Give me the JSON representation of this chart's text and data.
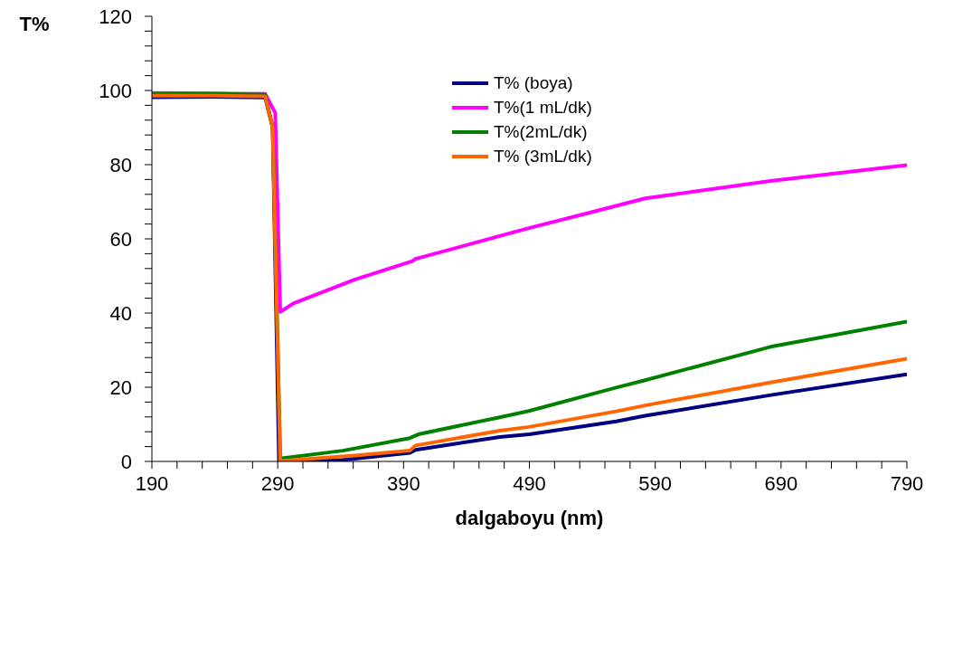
{
  "chart_data": {
    "type": "line",
    "xlabel": "dalgaboyu (nm)",
    "ylabel": "T%",
    "xlim": [
      190,
      790
    ],
    "ylim": [
      0,
      120
    ],
    "xticks": [
      190,
      {
        "value": 210,
        "label": null
      },
      {
        "value": 230,
        "label": null
      },
      {
        "value": 250,
        "label": null
      },
      {
        "value": 270,
        "label": null
      },
      290,
      {
        "value": 310,
        "label": null
      },
      {
        "value": 330,
        "label": null
      },
      {
        "value": 350,
        "label": null
      },
      {
        "value": 370,
        "label": null
      },
      390,
      {
        "value": 410,
        "label": null
      },
      {
        "value": 430,
        "label": null
      },
      {
        "value": 450,
        "label": null
      },
      {
        "value": 470,
        "label": null
      },
      490,
      {
        "value": 510,
        "label": null
      },
      {
        "value": 530,
        "label": null
      },
      {
        "value": 550,
        "label": null
      },
      {
        "value": 570,
        "label": null
      },
      590,
      {
        "value": 610,
        "label": null
      },
      {
        "value": 630,
        "label": null
      },
      {
        "value": 650,
        "label": null
      },
      {
        "value": 670,
        "label": null
      },
      690,
      {
        "value": 710,
        "label": null
      },
      {
        "value": 730,
        "label": null
      },
      {
        "value": 750,
        "label": null
      },
      {
        "value": 770,
        "label": null
      },
      790
    ],
    "yticks": [
      0,
      {
        "value": 4,
        "label": null
      },
      {
        "value": 8,
        "label": null
      },
      {
        "value": 12,
        "label": null
      },
      {
        "value": 16,
        "label": null
      },
      20,
      {
        "value": 24,
        "label": null
      },
      {
        "value": 28,
        "label": null
      },
      {
        "value": 32,
        "label": null
      },
      {
        "value": 36,
        "label": null
      },
      40,
      {
        "value": 44,
        "label": null
      },
      {
        "value": 48,
        "label": null
      },
      {
        "value": 52,
        "label": null
      },
      {
        "value": 56,
        "label": null
      },
      60,
      {
        "value": 64,
        "label": null
      },
      {
        "value": 68,
        "label": null
      },
      {
        "value": 72,
        "label": null
      },
      {
        "value": 76,
        "label": null
      },
      80,
      {
        "value": 84,
        "label": null
      },
      {
        "value": 88,
        "label": null
      },
      {
        "value": 92,
        "label": null
      },
      {
        "value": 96,
        "label": null
      },
      100,
      {
        "value": 104,
        "label": null
      },
      {
        "value": 108,
        "label": null
      },
      {
        "value": 112,
        "label": null
      },
      {
        "value": 116,
        "label": null
      },
      120
    ],
    "grid": false,
    "legend": "top",
    "marker": "none",
    "line_style": "solid",
    "series": [
      {
        "name": "T% (boya)",
        "color": "#000080",
        "x": [
          190,
          240,
          280,
          286,
          291,
          339,
          395,
          399.5,
          466.5,
          490,
          559,
          582,
          682,
          790
        ],
        "values": [
          98.2,
          98.3,
          98.1,
          90,
          0,
          0.3,
          2.3,
          3.1,
          6.6,
          7.3,
          10.8,
          12.3,
          17.9,
          23.5
        ]
      },
      {
        "name": "T%(1 mL/dk)",
        "color": "#ff00ff",
        "x": [
          190,
          240,
          280,
          288,
          292,
          302.4,
          351,
          397,
          399.5,
          489.6,
          536,
          582,
          681.6,
          790
        ],
        "values": [
          99.3,
          99.2,
          99.1,
          94,
          40.3,
          42.6,
          49,
          54,
          54.6,
          62.9,
          66.9,
          70.9,
          75.6,
          79.9
        ]
      },
      {
        "name": "T%(2mL/dk)",
        "color": "#008000",
        "x": [
          190,
          240,
          280,
          286,
          292,
          341.7,
          395,
          401.7,
          466.5,
          489.6,
          559,
          582,
          681.6,
          790
        ],
        "values": [
          99.1,
          99.1,
          98.9,
          90,
          0.8,
          2.9,
          6.3,
          7.3,
          11.9,
          13.6,
          19.9,
          21.9,
          30.9,
          37.7
        ]
      },
      {
        "name": "T% (3mL/dk)",
        "color": "#ff6600",
        "x": [
          190,
          240,
          280,
          286,
          292,
          351,
          395,
          399.5,
          466.5,
          489.6,
          559,
          582,
          681.6,
          790
        ],
        "values": [
          98.6,
          98.6,
          98.4,
          90,
          0.1,
          1.6,
          2.9,
          4.3,
          8.3,
          9.3,
          13.5,
          15.1,
          21.3,
          27.7
        ]
      }
    ]
  }
}
